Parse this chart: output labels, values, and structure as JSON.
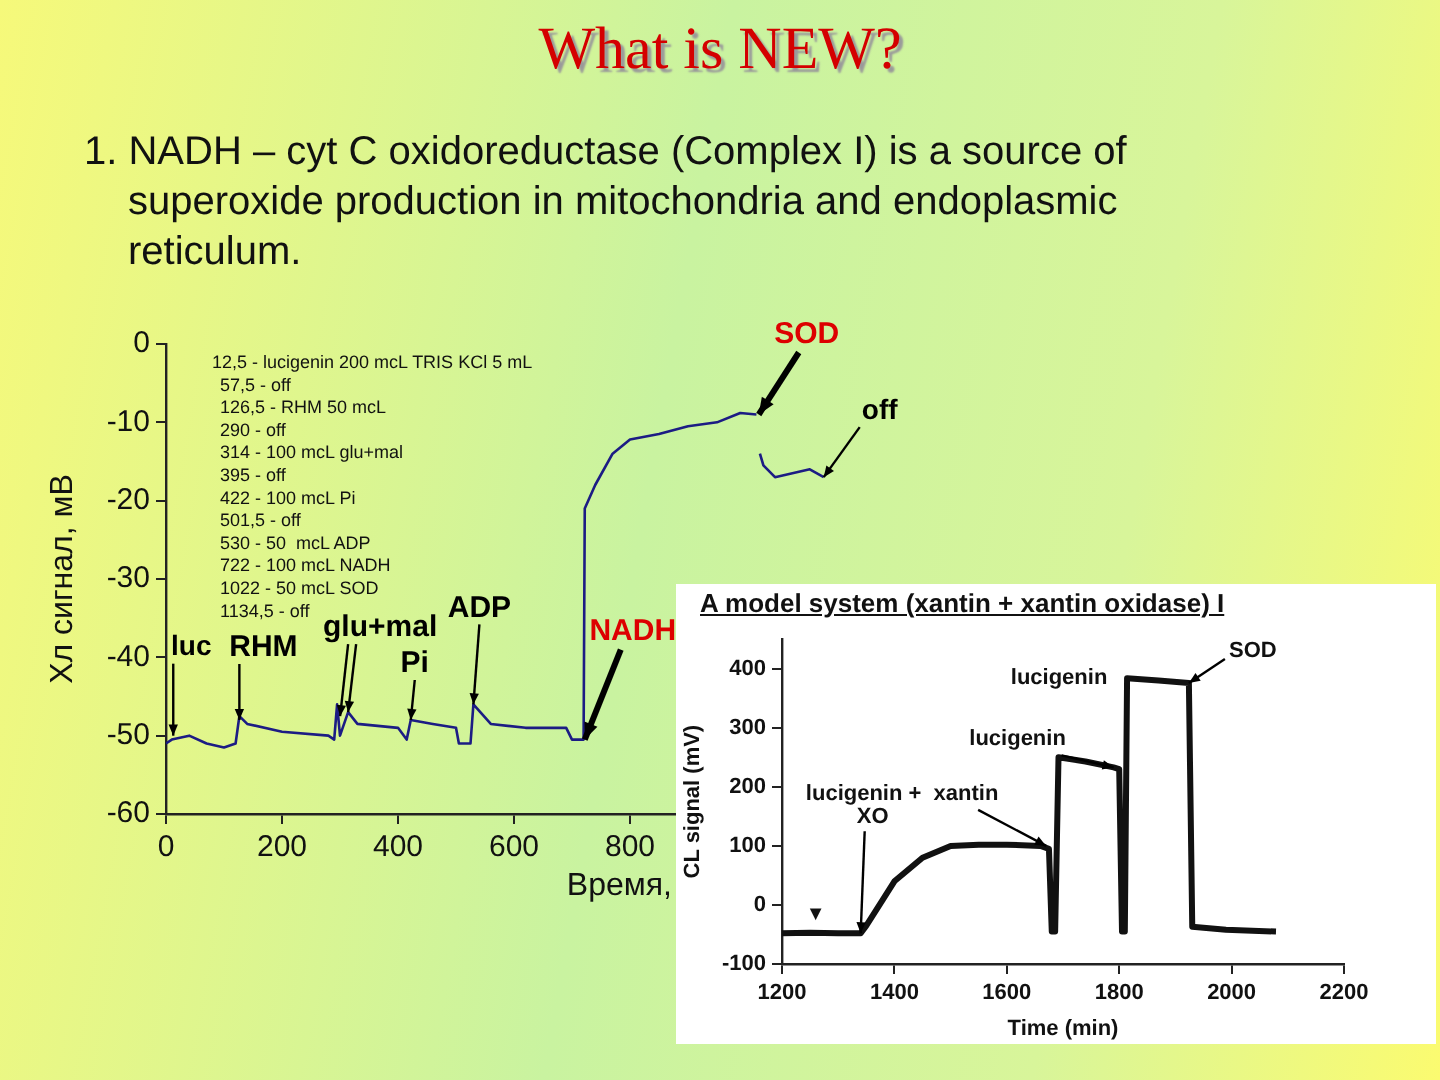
{
  "chart_data": [
    {
      "type": "line",
      "title": "What is NEW?",
      "subtitle": "1. NADH – cyt C oxidoreductase (Complex I) is a source of superoxide production in mitochondria and endoplasmic reticulum.",
      "xlabel": "Время,",
      "ylabel": "Хл сигнал, мВ",
      "xlim": [
        0,
        1200
      ],
      "ylim": [
        -60,
        0
      ],
      "xticks": [
        0,
        200,
        400,
        600,
        800
      ],
      "yticks": [
        -60,
        -50,
        -40,
        -30,
        -20,
        -10,
        0
      ],
      "x": [
        0,
        10,
        40,
        70,
        100,
        120,
        126.5,
        140,
        200,
        280,
        290,
        295,
        300,
        314,
        330,
        400,
        415,
        422,
        460,
        500,
        505,
        525,
        530,
        560,
        620,
        690,
        700,
        720,
        722,
        740,
        770,
        800,
        850,
        900,
        950,
        990,
        1018,
        1020,
        1024,
        1030,
        1050,
        1080,
        1110,
        1134
      ],
      "series": [
        {
          "color": "#1c1c84",
          "values": [
            -51,
            -50.5,
            -50,
            -51,
            -51.5,
            -51,
            -47.5,
            -48.5,
            -49.5,
            -50,
            -50.5,
            -46,
            -50,
            -47,
            -48.5,
            -49,
            -50.5,
            -48,
            -48.5,
            -49,
            -51,
            -51,
            -46,
            -48.5,
            -49,
            -49,
            -50.5,
            -50.5,
            -21,
            -18,
            -14,
            -12.2,
            -11.5,
            -10.5,
            -10,
            -8.8,
            -9,
            null,
            -14,
            -15.5,
            -17,
            -16.5,
            -16,
            -17
          ]
        }
      ],
      "annotations": [
        "12,5 - lucigenin 200 mcL TRIS KCl 5 mL\n57,5 - off\n126,5 - RHM 50 mcL\n290 - off\n314 - 100 mcL glu+mal\n395 - off\n422 - 100 mcL Pi\n501,5 - off\n530 - 50  mcL ADP\n722 - 100 mcL NADH\n1022 - 50 mcL SOD\n1134,5 - off",
        {
          "text": "luc",
          "x": 12.5,
          "y": -50
        },
        {
          "text": "RHM",
          "x": 126.5,
          "y": -48
        },
        {
          "text": "glu+mal",
          "x": 314,
          "y": -47
        },
        {
          "text": "Pi",
          "x": 422,
          "y": -48
        },
        {
          "text": "ADP",
          "x": 530,
          "y": -46
        },
        {
          "text": "NADH",
          "x": 722,
          "y": -50.5
        },
        {
          "text": "SOD",
          "x": 1022,
          "y": -9
        },
        {
          "text": "off",
          "x": 1134,
          "y": -17
        }
      ]
    },
    {
      "type": "line",
      "title": "A model system (xantin + xantin oxidase) I",
      "xlabel": "Time (min)",
      "ylabel": "CL signal (mV)",
      "xlim": [
        1200,
        2200
      ],
      "ylim": [
        -100,
        450
      ],
      "xticks": [
        1200,
        1400,
        1600,
        1800,
        2000,
        2200
      ],
      "yticks": [
        -100,
        0,
        100,
        200,
        300,
        400
      ],
      "x": [
        1200,
        1250,
        1300,
        1340,
        1350,
        1380,
        1400,
        1450,
        1500,
        1550,
        1600,
        1660,
        1675,
        1680,
        1686,
        1692,
        1740,
        1790,
        1800,
        1805,
        1810,
        1814,
        1870,
        1924,
        1930,
        1990,
        2079
      ],
      "series": [
        {
          "color": "#111111",
          "values": [
            -48,
            -47,
            -48,
            -48,
            -35,
            10,
            40,
            80,
            100,
            102,
            102,
            100,
            95,
            -45,
            -45,
            250,
            243,
            233,
            230,
            -45,
            -45,
            384,
            380,
            376,
            -37,
            -42,
            -45
          ]
        }
      ],
      "annotations": [
        {
          "text": "▼",
          "x": 1260,
          "y": -47
        },
        {
          "text": "XO",
          "x": 1340,
          "y": -48
        },
        {
          "text": "lucigenin +  xantin",
          "x": 1670,
          "y": 100
        },
        {
          "text": "lucigenin",
          "x": 1790,
          "y": 233
        },
        {
          "text": "lucigenin",
          "x": 1814,
          "y": 384
        },
        {
          "text": "SOD",
          "x": 1924,
          "y": 376
        }
      ]
    }
  ]
}
